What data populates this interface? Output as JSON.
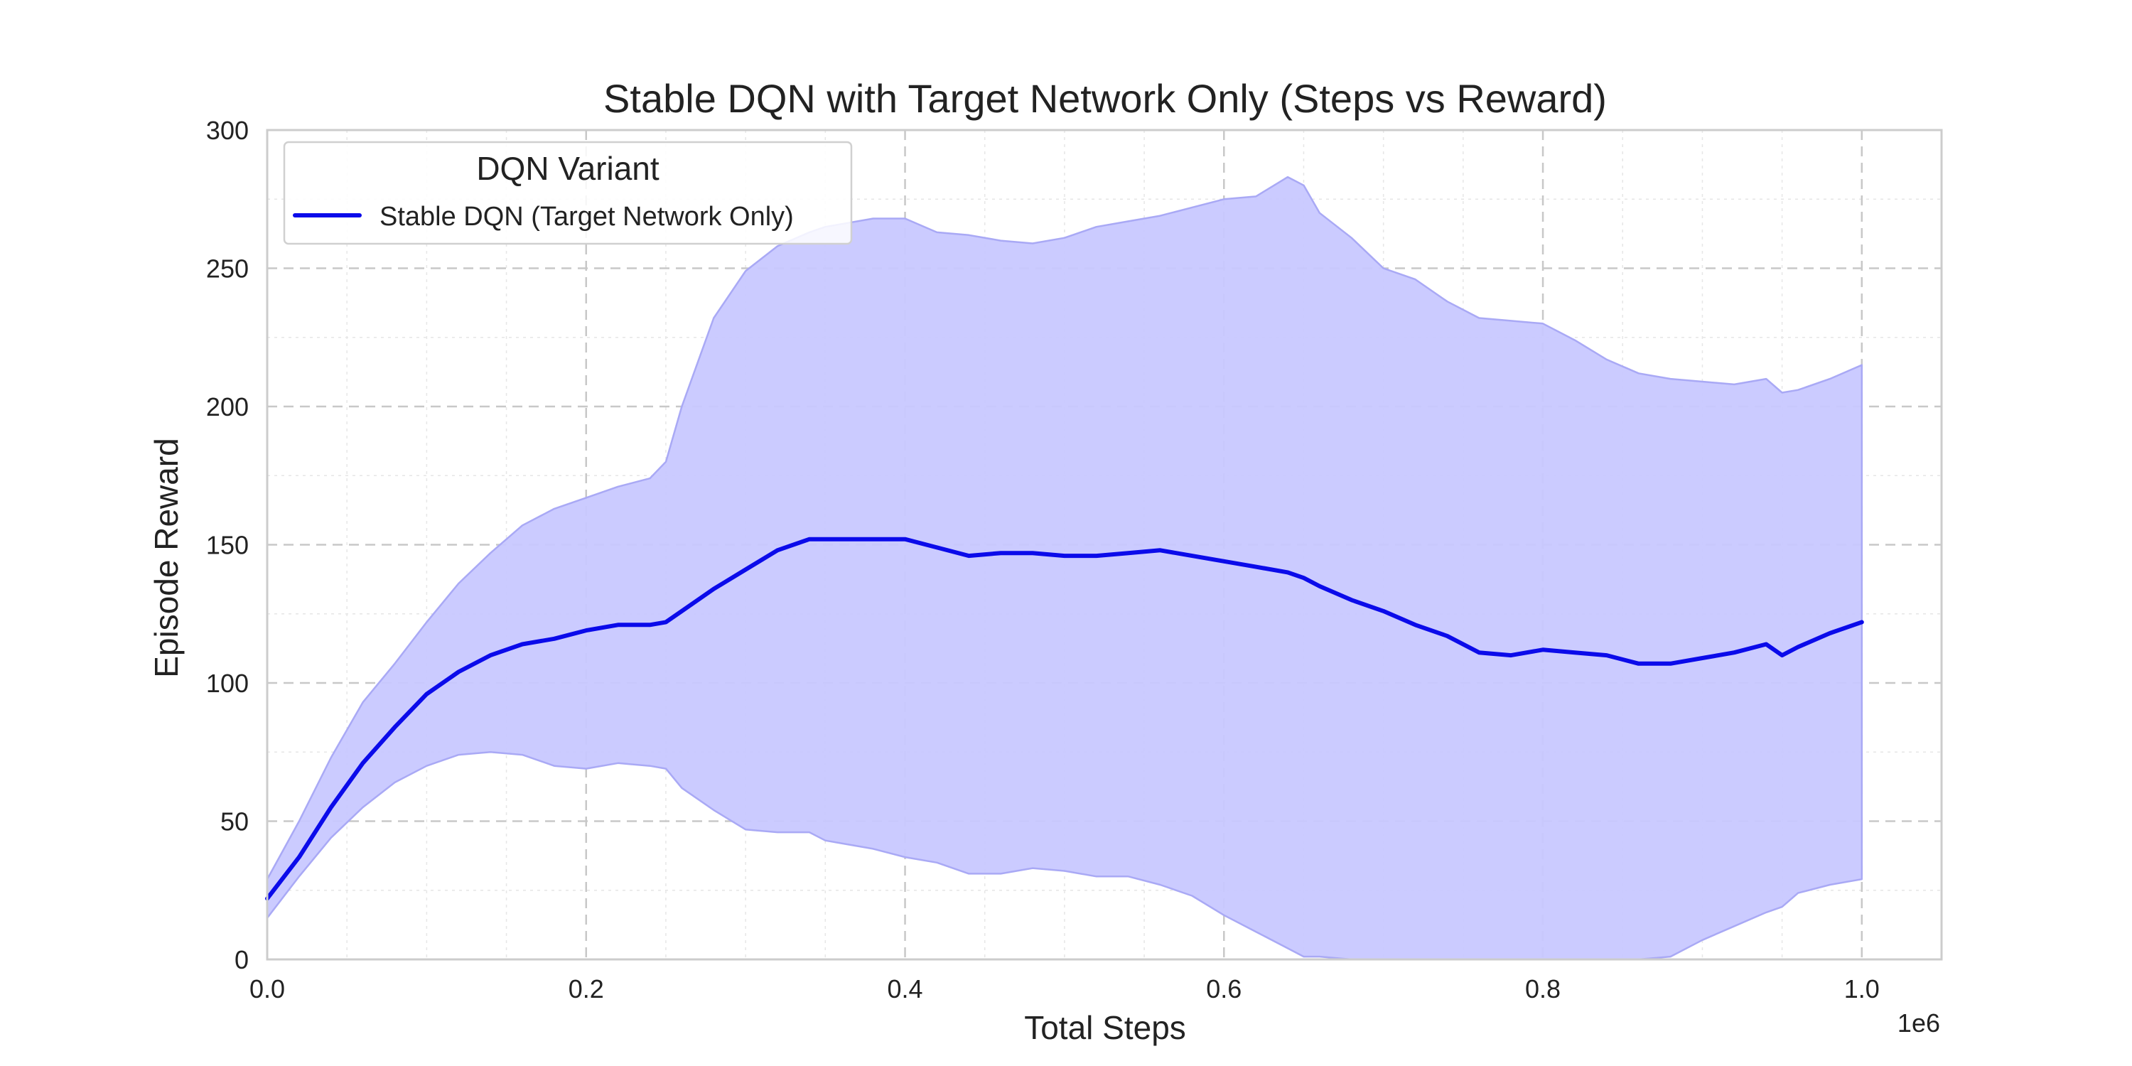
{
  "chart_data": {
    "type": "line",
    "title": "Stable DQN with Target Network Only (Steps vs Reward)",
    "xlabel": "Total Steps",
    "ylabel": "Episode Reward",
    "x_offset_label": "1e6",
    "xlim": [
      0,
      1.05
    ],
    "ylim": [
      0,
      300
    ],
    "x_ticks": [
      0.0,
      0.2,
      0.4,
      0.6,
      0.8,
      1.0
    ],
    "x_tick_labels": [
      "0.0",
      "0.2",
      "0.4",
      "0.6",
      "0.8",
      "1.0"
    ],
    "y_ticks": [
      0,
      50,
      100,
      150,
      200,
      250,
      300
    ],
    "y_tick_labels": [
      "0",
      "50",
      "100",
      "150",
      "200",
      "250",
      "300"
    ],
    "grid": true,
    "legend": {
      "title": "DQN Variant",
      "placement": "top-left",
      "entries": [
        "Stable DQN (Target Network Only)"
      ]
    },
    "series": [
      {
        "name": "Stable DQN (Target Network Only)",
        "color": "#0b0bea",
        "band_color": "#c8c8ff",
        "band_edge_color": "#a9a9f5",
        "x": [
          0.0,
          0.02,
          0.04,
          0.06,
          0.08,
          0.1,
          0.12,
          0.14,
          0.16,
          0.18,
          0.2,
          0.22,
          0.24,
          0.25,
          0.26,
          0.28,
          0.3,
          0.32,
          0.34,
          0.35,
          0.36,
          0.38,
          0.4,
          0.42,
          0.44,
          0.46,
          0.48,
          0.5,
          0.52,
          0.54,
          0.56,
          0.58,
          0.6,
          0.62,
          0.64,
          0.65,
          0.66,
          0.68,
          0.7,
          0.72,
          0.74,
          0.76,
          0.78,
          0.8,
          0.82,
          0.84,
          0.86,
          0.88,
          0.9,
          0.92,
          0.94,
          0.95,
          0.96,
          0.98,
          1.0
        ],
        "mean": [
          22,
          37,
          55,
          71,
          84,
          96,
          104,
          110,
          114,
          116,
          119,
          121,
          121,
          122,
          126,
          134,
          141,
          148,
          152,
          152,
          152,
          152,
          152,
          149,
          146,
          147,
          147,
          146,
          146,
          147,
          148,
          146,
          144,
          142,
          140,
          138,
          135,
          130,
          126,
          121,
          117,
          111,
          110,
          112,
          111,
          110,
          107,
          107,
          109,
          111,
          114,
          110,
          113,
          118,
          122
        ],
        "upper": [
          29,
          50,
          73,
          93,
          107,
          122,
          136,
          147,
          157,
          163,
          167,
          171,
          174,
          180,
          200,
          232,
          249,
          258,
          263,
          265,
          266,
          268,
          268,
          263,
          262,
          260,
          259,
          261,
          265,
          267,
          269,
          272,
          275,
          276,
          283,
          280,
          270,
          261,
          250,
          246,
          238,
          232,
          231,
          230,
          224,
          217,
          212,
          210,
          209,
          208,
          210,
          205,
          206,
          210,
          215
        ],
        "lower": [
          15,
          30,
          44,
          55,
          64,
          70,
          74,
          75,
          74,
          70,
          69,
          71,
          70,
          69,
          62,
          54,
          47,
          46,
          46,
          43,
          42,
          40,
          37,
          35,
          31,
          31,
          33,
          32,
          30,
          30,
          27,
          23,
          16,
          10,
          4,
          1,
          1,
          0,
          0,
          0,
          0,
          0,
          0,
          0,
          0,
          0,
          0,
          1,
          7,
          12,
          17,
          19,
          24,
          27,
          29
        ]
      }
    ]
  }
}
